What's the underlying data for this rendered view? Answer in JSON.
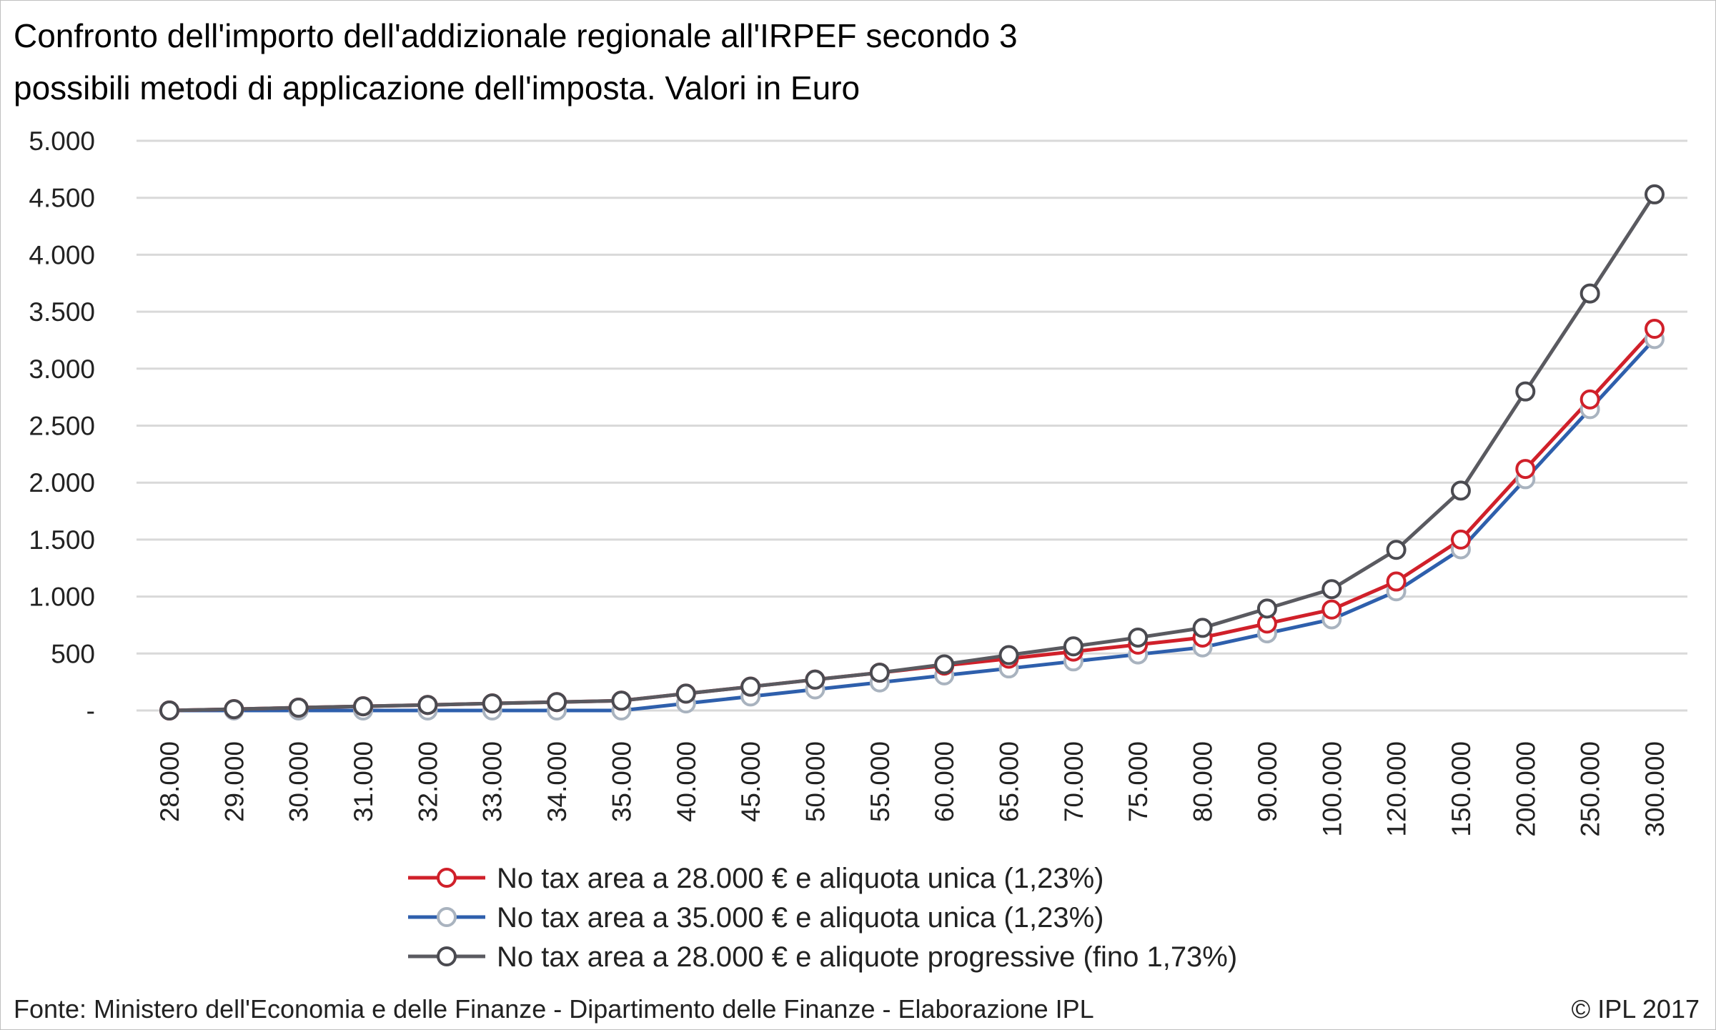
{
  "chart_data": {
    "type": "line",
    "title_lines": [
      "Confronto dell'importo dell'addizionale regionale all'IRPEF secondo 3",
      "possibili metodi di applicazione dell'imposta. Valori in Euro"
    ],
    "xlabel": "",
    "ylabel": "",
    "categories": [
      "28.000",
      "29.000",
      "30.000",
      "31.000",
      "32.000",
      "33.000",
      "34.000",
      "35.000",
      "40.000",
      "45.000",
      "50.000",
      "55.000",
      "60.000",
      "65.000",
      "70.000",
      "75.000",
      "80.000",
      "90.000",
      "100.000",
      "120.000",
      "150.000",
      "200.000",
      "250.000",
      "300.000"
    ],
    "ylim": [
      0,
      5000
    ],
    "yticks": [
      0,
      500,
      1000,
      1500,
      2000,
      2500,
      3000,
      3500,
      4000,
      4500,
      5000
    ],
    "ytick_labels": [
      "-",
      "500",
      "1.000",
      "1.500",
      "2.000",
      "2.500",
      "3.000",
      "3.500",
      "4.000",
      "4.500",
      "5.000"
    ],
    "grid": true,
    "legend_position": "bottom",
    "series": [
      {
        "name": "No tax area a 28.000 € e aliquota unica (1,23%)",
        "color": "#d0202a",
        "marker_fill": "#ffffff",
        "marker_stroke": "#d0202a",
        "values": [
          0,
          12,
          25,
          37,
          49,
          62,
          74,
          86,
          148,
          209,
          271,
          332,
          394,
          455,
          517,
          578,
          640,
          763,
          886,
          1132,
          1500,
          2120,
          2730,
          3350
        ]
      },
      {
        "name": "No tax area a 35.000 € e aliquota unica (1,23%)",
        "color": "#2e5fac",
        "marker_fill": "#ffffff",
        "marker_stroke": "#a9b3bf",
        "values": [
          0,
          0,
          0,
          0,
          0,
          0,
          0,
          0,
          62,
          123,
          185,
          246,
          308,
          369,
          431,
          492,
          554,
          677,
          800,
          1046,
          1415,
          2030,
          2645,
          3260
        ]
      },
      {
        "name": "No tax area a 28.000 € e aliquote progressive (fino 1,73%)",
        "color": "#5a5a60",
        "marker_fill": "#ffffff",
        "marker_stroke": "#4a4a50",
        "values": [
          0,
          12,
          25,
          37,
          49,
          62,
          74,
          86,
          148,
          209,
          271,
          332,
          405,
          486,
          563,
          640,
          725,
          895,
          1065,
          1410,
          1930,
          2800,
          3660,
          4530
        ]
      }
    ]
  },
  "footer": {
    "source": "Fonte: Ministero dell'Economia e delle Finanze - Dipartimento delle Finanze - Elaborazione IPL",
    "copyright": "© IPL 2017"
  }
}
